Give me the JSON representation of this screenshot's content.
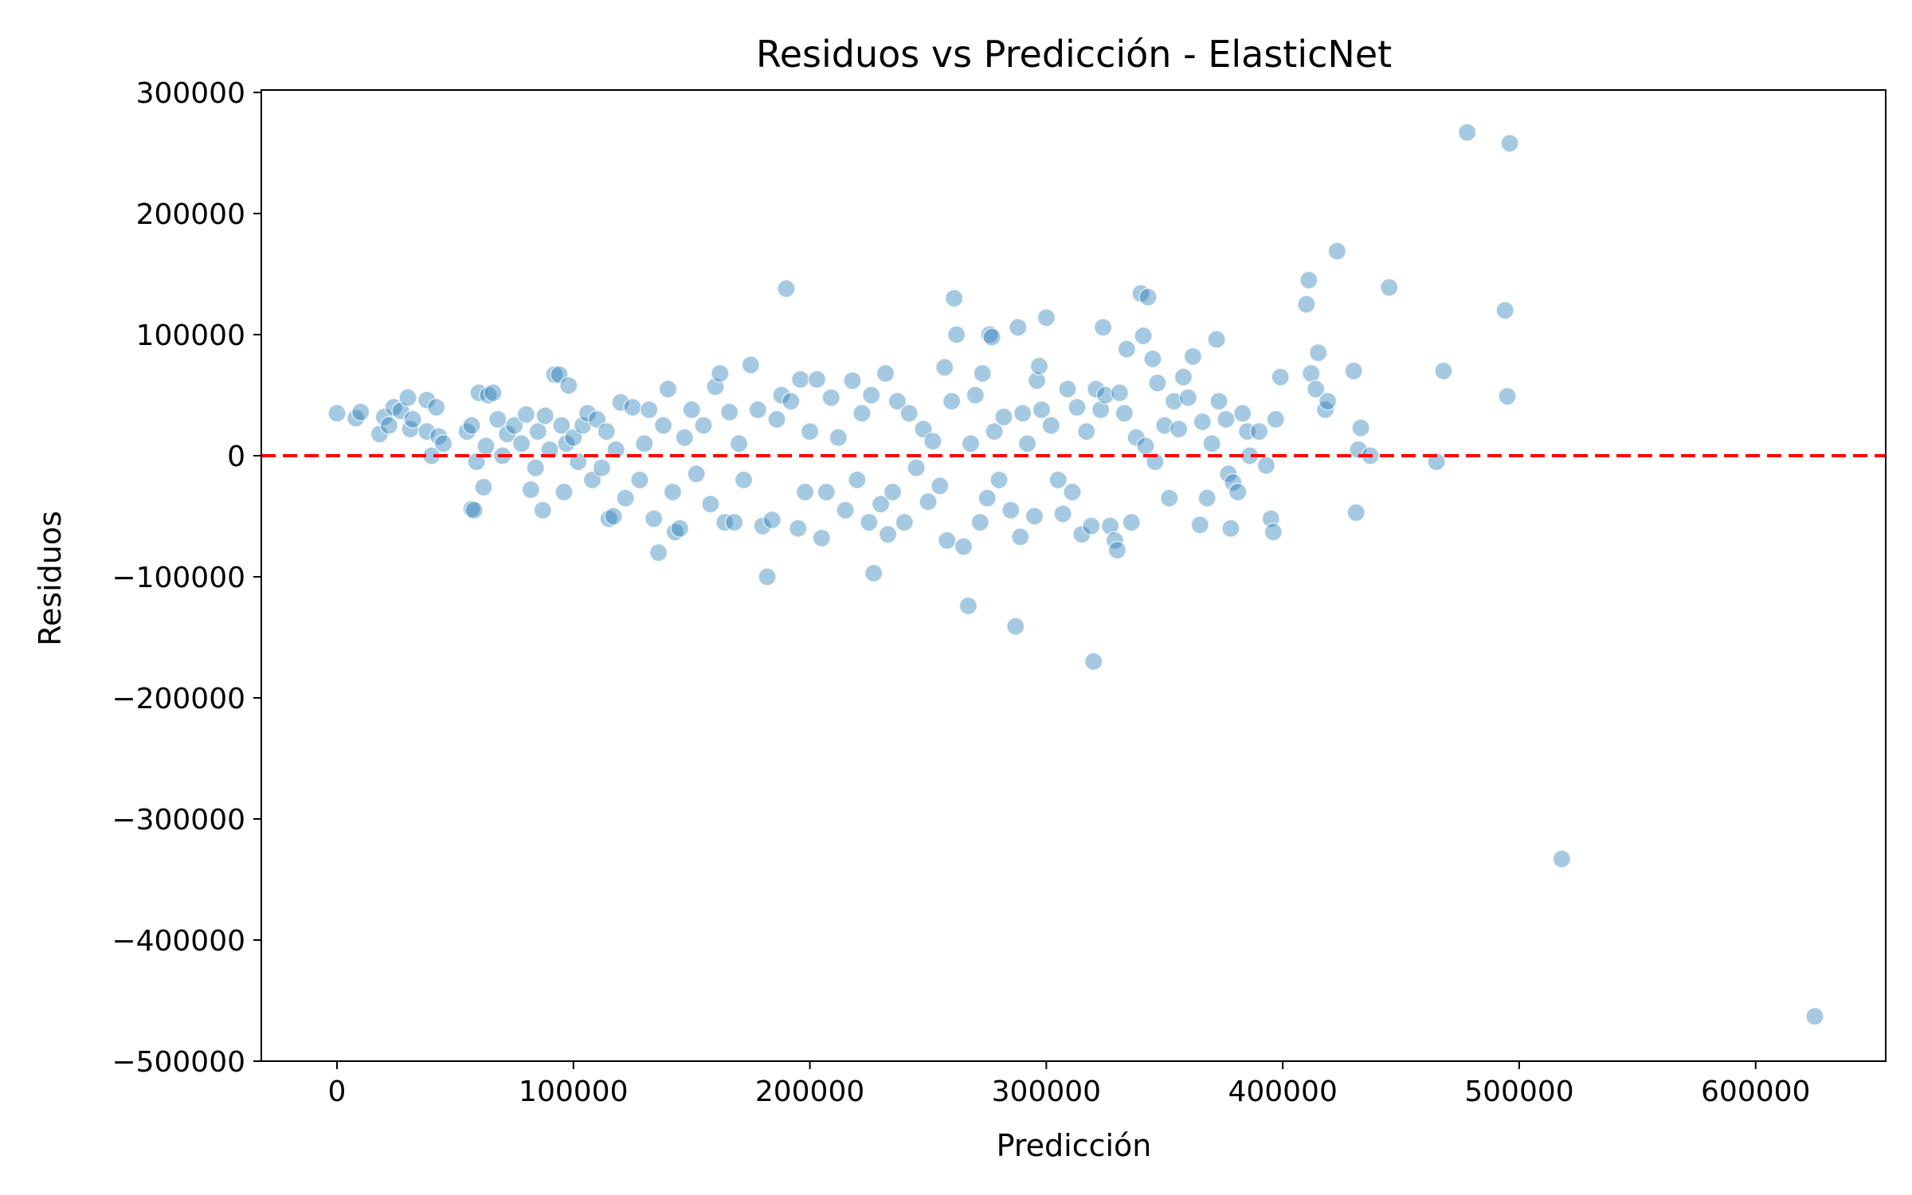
{
  "chart_data": {
    "type": "scatter",
    "title": "Residuos vs Predicción - ElasticNet",
    "xlabel": "Predicción",
    "ylabel": "Residuos",
    "xlim": [
      -32000,
      655000
    ],
    "ylim": [
      -500000,
      302000
    ],
    "xticks": [
      0,
      100000,
      200000,
      300000,
      400000,
      500000,
      600000
    ],
    "xtick_labels": [
      "0",
      "100000",
      "200000",
      "300000",
      "400000",
      "500000",
      "600000"
    ],
    "yticks": [
      -500000,
      -400000,
      -300000,
      -200000,
      -100000,
      0,
      100000,
      200000,
      300000
    ],
    "ytick_labels": [
      "−500000",
      "−400000",
      "−300000",
      "−200000",
      "−100000",
      "0",
      "100000",
      "200000",
      "300000"
    ],
    "grid": false,
    "marker_color": "#1f77b4",
    "marker_alpha": 0.4,
    "reference_line": {
      "y": 0,
      "style": "dashed",
      "color": "#ff0000"
    },
    "points": [
      [
        0,
        35000
      ],
      [
        8000,
        31000
      ],
      [
        10000,
        36000
      ],
      [
        18000,
        18000
      ],
      [
        20000,
        32000
      ],
      [
        22000,
        25000
      ],
      [
        24000,
        40000
      ],
      [
        27000,
        37000
      ],
      [
        30000,
        48000
      ],
      [
        31000,
        22000
      ],
      [
        32000,
        30000
      ],
      [
        38000,
        46000
      ],
      [
        38000,
        20000
      ],
      [
        40000,
        0
      ],
      [
        42000,
        40000
      ],
      [
        43000,
        16000
      ],
      [
        45000,
        10000
      ],
      [
        55000,
        20000
      ],
      [
        57000,
        25000
      ],
      [
        57000,
        -44000
      ],
      [
        58000,
        -45000
      ],
      [
        59000,
        -5000
      ],
      [
        60000,
        52000
      ],
      [
        62000,
        -26000
      ],
      [
        63000,
        8000
      ],
      [
        64000,
        50000
      ],
      [
        66000,
        52000
      ],
      [
        68000,
        30000
      ],
      [
        70000,
        0
      ],
      [
        72000,
        18000
      ],
      [
        75000,
        25000
      ],
      [
        78000,
        10000
      ],
      [
        80000,
        34000
      ],
      [
        82000,
        -28000
      ],
      [
        84000,
        -10000
      ],
      [
        85000,
        20000
      ],
      [
        87000,
        -45000
      ],
      [
        88000,
        33000
      ],
      [
        90000,
        5000
      ],
      [
        92000,
        67000
      ],
      [
        94000,
        67000
      ],
      [
        95000,
        25000
      ],
      [
        96000,
        -30000
      ],
      [
        97000,
        10000
      ],
      [
        98000,
        58000
      ],
      [
        100000,
        15000
      ],
      [
        102000,
        -5000
      ],
      [
        104000,
        25000
      ],
      [
        106000,
        35000
      ],
      [
        108000,
        -20000
      ],
      [
        110000,
        30000
      ],
      [
        112000,
        -10000
      ],
      [
        114000,
        20000
      ],
      [
        115000,
        -52000
      ],
      [
        117000,
        -50000
      ],
      [
        118000,
        5000
      ],
      [
        120000,
        44000
      ],
      [
        122000,
        -35000
      ],
      [
        125000,
        40000
      ],
      [
        128000,
        -20000
      ],
      [
        130000,
        10000
      ],
      [
        132000,
        38000
      ],
      [
        134000,
        -52000
      ],
      [
        136000,
        -80000
      ],
      [
        138000,
        25000
      ],
      [
        140000,
        55000
      ],
      [
        142000,
        -30000
      ],
      [
        143000,
        -63000
      ],
      [
        145000,
        -60000
      ],
      [
        147000,
        15000
      ],
      [
        150000,
        38000
      ],
      [
        152000,
        -15000
      ],
      [
        155000,
        25000
      ],
      [
        158000,
        -40000
      ],
      [
        160000,
        57000
      ],
      [
        162000,
        68000
      ],
      [
        164000,
        -55000
      ],
      [
        166000,
        36000
      ],
      [
        168000,
        -55000
      ],
      [
        170000,
        10000
      ],
      [
        172000,
        -20000
      ],
      [
        175000,
        75000
      ],
      [
        178000,
        38000
      ],
      [
        180000,
        -58000
      ],
      [
        182000,
        -100000
      ],
      [
        184000,
        -53000
      ],
      [
        186000,
        30000
      ],
      [
        188000,
        50000
      ],
      [
        190000,
        138000
      ],
      [
        192000,
        45000
      ],
      [
        195000,
        -60000
      ],
      [
        196000,
        63000
      ],
      [
        198000,
        -30000
      ],
      [
        200000,
        20000
      ],
      [
        203000,
        63000
      ],
      [
        205000,
        -68000
      ],
      [
        207000,
        -30000
      ],
      [
        209000,
        48000
      ],
      [
        212000,
        15000
      ],
      [
        215000,
        -45000
      ],
      [
        218000,
        62000
      ],
      [
        220000,
        -20000
      ],
      [
        222000,
        35000
      ],
      [
        225000,
        -55000
      ],
      [
        226000,
        50000
      ],
      [
        227000,
        -97000
      ],
      [
        230000,
        -40000
      ],
      [
        232000,
        68000
      ],
      [
        233000,
        -65000
      ],
      [
        235000,
        -30000
      ],
      [
        237000,
        45000
      ],
      [
        240000,
        -55000
      ],
      [
        242000,
        35000
      ],
      [
        245000,
        -10000
      ],
      [
        248000,
        22000
      ],
      [
        250000,
        -38000
      ],
      [
        252000,
        12000
      ],
      [
        255000,
        -25000
      ],
      [
        257000,
        73000
      ],
      [
        258000,
        -70000
      ],
      [
        260000,
        45000
      ],
      [
        261000,
        130000
      ],
      [
        262000,
        100000
      ],
      [
        265000,
        -75000
      ],
      [
        267000,
        -124000
      ],
      [
        268000,
        10000
      ],
      [
        270000,
        50000
      ],
      [
        272000,
        -55000
      ],
      [
        273000,
        68000
      ],
      [
        275000,
        -35000
      ],
      [
        276000,
        100000
      ],
      [
        277000,
        98000
      ],
      [
        278000,
        20000
      ],
      [
        280000,
        -20000
      ],
      [
        282000,
        32000
      ],
      [
        285000,
        -45000
      ],
      [
        287000,
        -141000
      ],
      [
        288000,
        106000
      ],
      [
        289000,
        -67000
      ],
      [
        290000,
        35000
      ],
      [
        292000,
        10000
      ],
      [
        295000,
        -50000
      ],
      [
        296000,
        62000
      ],
      [
        297000,
        74000
      ],
      [
        298000,
        38000
      ],
      [
        300000,
        114000
      ],
      [
        302000,
        25000
      ],
      [
        305000,
        -20000
      ],
      [
        307000,
        -48000
      ],
      [
        309000,
        55000
      ],
      [
        311000,
        -30000
      ],
      [
        313000,
        40000
      ],
      [
        315000,
        -65000
      ],
      [
        317000,
        20000
      ],
      [
        319000,
        -58000
      ],
      [
        320000,
        -170000
      ],
      [
        321000,
        55000
      ],
      [
        323000,
        38000
      ],
      [
        324000,
        106000
      ],
      [
        325000,
        50000
      ],
      [
        327000,
        -58000
      ],
      [
        329000,
        -70000
      ],
      [
        330000,
        -78000
      ],
      [
        331000,
        52000
      ],
      [
        333000,
        35000
      ],
      [
        334000,
        88000
      ],
      [
        336000,
        -55000
      ],
      [
        338000,
        15000
      ],
      [
        340000,
        134000
      ],
      [
        341000,
        99000
      ],
      [
        342000,
        8000
      ],
      [
        343000,
        131000
      ],
      [
        345000,
        80000
      ],
      [
        346000,
        -5000
      ],
      [
        347000,
        60000
      ],
      [
        350000,
        25000
      ],
      [
        352000,
        -35000
      ],
      [
        354000,
        45000
      ],
      [
        356000,
        22000
      ],
      [
        358000,
        65000
      ],
      [
        360000,
        48000
      ],
      [
        362000,
        82000
      ],
      [
        365000,
        -57000
      ],
      [
        366000,
        28000
      ],
      [
        368000,
        -35000
      ],
      [
        370000,
        10000
      ],
      [
        372000,
        96000
      ],
      [
        373000,
        45000
      ],
      [
        376000,
        30000
      ],
      [
        377000,
        -15000
      ],
      [
        378000,
        -60000
      ],
      [
        379000,
        -22000
      ],
      [
        381000,
        -30000
      ],
      [
        383000,
        35000
      ],
      [
        385000,
        20000
      ],
      [
        386000,
        0
      ],
      [
        390000,
        20000
      ],
      [
        393000,
        -8000
      ],
      [
        395000,
        -52000
      ],
      [
        396000,
        -63000
      ],
      [
        397000,
        30000
      ],
      [
        399000,
        65000
      ],
      [
        410000,
        125000
      ],
      [
        411000,
        145000
      ],
      [
        412000,
        68000
      ],
      [
        414000,
        55000
      ],
      [
        415000,
        85000
      ],
      [
        418000,
        38000
      ],
      [
        419000,
        45000
      ],
      [
        423000,
        169000
      ],
      [
        430000,
        70000
      ],
      [
        431000,
        -47000
      ],
      [
        432000,
        5000
      ],
      [
        433000,
        23000
      ],
      [
        437000,
        0
      ],
      [
        445000,
        139000
      ],
      [
        465000,
        -5000
      ],
      [
        468000,
        70000
      ],
      [
        478000,
        267000
      ],
      [
        494000,
        120000
      ],
      [
        495000,
        49000
      ],
      [
        496000,
        258000
      ],
      [
        518000,
        -333000
      ],
      [
        625000,
        -463000
      ]
    ]
  }
}
